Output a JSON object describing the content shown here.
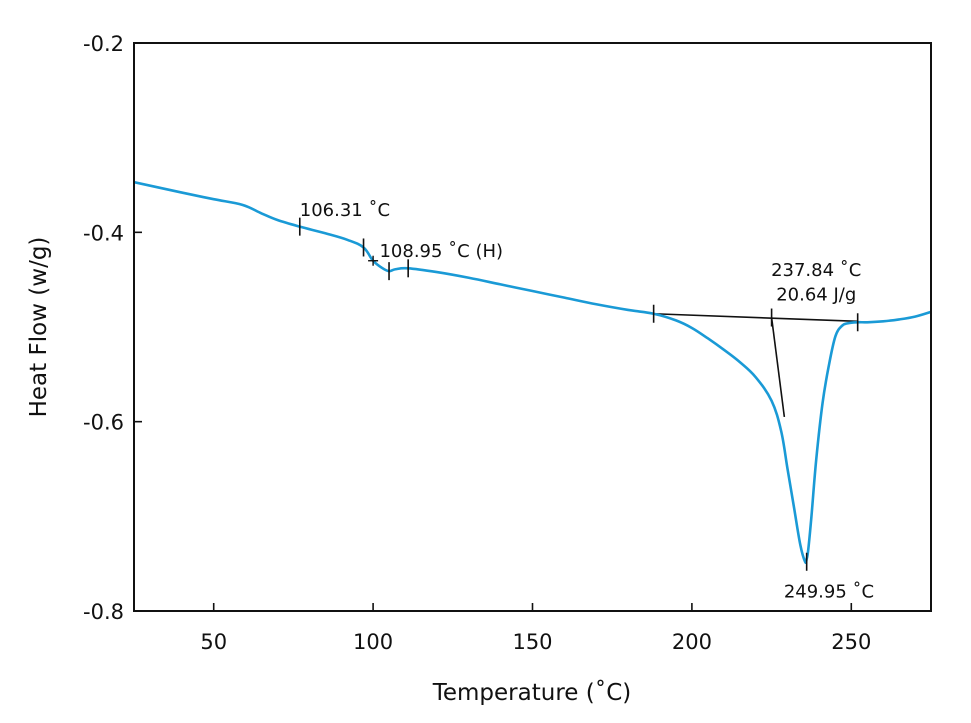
{
  "chart_data": {
    "type": "line",
    "xlabel": "Temperature (˚C)",
    "ylabel": "Heat Flow (w/g)",
    "xlim": [
      25,
      275
    ],
    "ylim": [
      -0.8,
      -0.2
    ],
    "x_ticks": [
      50,
      100,
      150,
      200,
      250
    ],
    "x_tick_labels": [
      "50",
      "100",
      "150",
      "200",
      "250"
    ],
    "y_ticks": [
      -0.8,
      -0.6,
      -0.4,
      -0.2
    ],
    "y_tick_labels": [
      "-0.8",
      "-0.6",
      "-0.4",
      "-0.2"
    ],
    "grid": false,
    "series": [
      {
        "color": "#1a9ad6",
        "x": [
          25,
          40,
          50,
          59,
          65,
          70,
          77,
          85,
          92,
          97,
          100,
          103,
          105,
          107,
          111,
          120,
          130,
          140,
          150,
          160,
          170,
          180,
          188,
          195,
          200,
          205,
          210,
          215,
          220,
          225,
          228,
          230,
          232,
          234,
          235.5,
          236,
          236.5,
          237.5,
          239,
          241,
          243,
          245,
          247,
          249,
          252,
          255,
          260,
          265,
          270,
          275
        ],
        "y": [
          -0.347,
          -0.358,
          -0.365,
          -0.371,
          -0.38,
          -0.387,
          -0.394,
          -0.401,
          -0.408,
          -0.416,
          -0.43,
          -0.438,
          -0.441,
          -0.439,
          -0.438,
          -0.442,
          -0.448,
          -0.455,
          -0.462,
          -0.469,
          -0.476,
          -0.482,
          -0.486,
          -0.493,
          -0.501,
          -0.512,
          -0.524,
          -0.537,
          -0.553,
          -0.578,
          -0.61,
          -0.65,
          -0.69,
          -0.73,
          -0.748,
          -0.745,
          -0.735,
          -0.7,
          -0.64,
          -0.58,
          -0.54,
          -0.51,
          -0.499,
          -0.496,
          -0.495,
          -0.495,
          -0.494,
          -0.492,
          -0.489,
          -0.484
        ]
      }
    ],
    "construction_lines": [
      {
        "x": [
          188,
          252
        ],
        "y": [
          -0.486,
          -0.494
        ]
      },
      {
        "x": [
          225,
          229
        ],
        "y": [
          -0.49,
          -0.595
        ]
      }
    ],
    "markers": [
      {
        "x": 77,
        "y": -0.394
      },
      {
        "x": 97,
        "y": -0.416
      },
      {
        "x": 105,
        "y": -0.441
      },
      {
        "x": 111,
        "y": -0.438
      },
      {
        "x": 188,
        "y": -0.486
      },
      {
        "x": 225,
        "y": -0.49
      },
      {
        "x": 252,
        "y": -0.495
      },
      {
        "x": 236,
        "y": -0.748
      }
    ],
    "cross_marker": {
      "x": 100,
      "y": -0.43
    },
    "annotations": [
      {
        "text": "106.31 ˚C",
        "x": 77,
        "y": -0.383
      },
      {
        "text": "108.95 ˚C (H)",
        "x": 102,
        "y": -0.426
      },
      {
        "text": "237.84 ˚C",
        "x": 239,
        "y": -0.446
      },
      {
        "text": "20.64 J/g",
        "x": 239,
        "y": -0.472
      },
      {
        "text": "249.95 ˚C",
        "x": 243,
        "y": -0.786
      }
    ]
  },
  "colors": {
    "series": "#1a9ad6",
    "axes": "#111111",
    "construction": "#111111"
  }
}
